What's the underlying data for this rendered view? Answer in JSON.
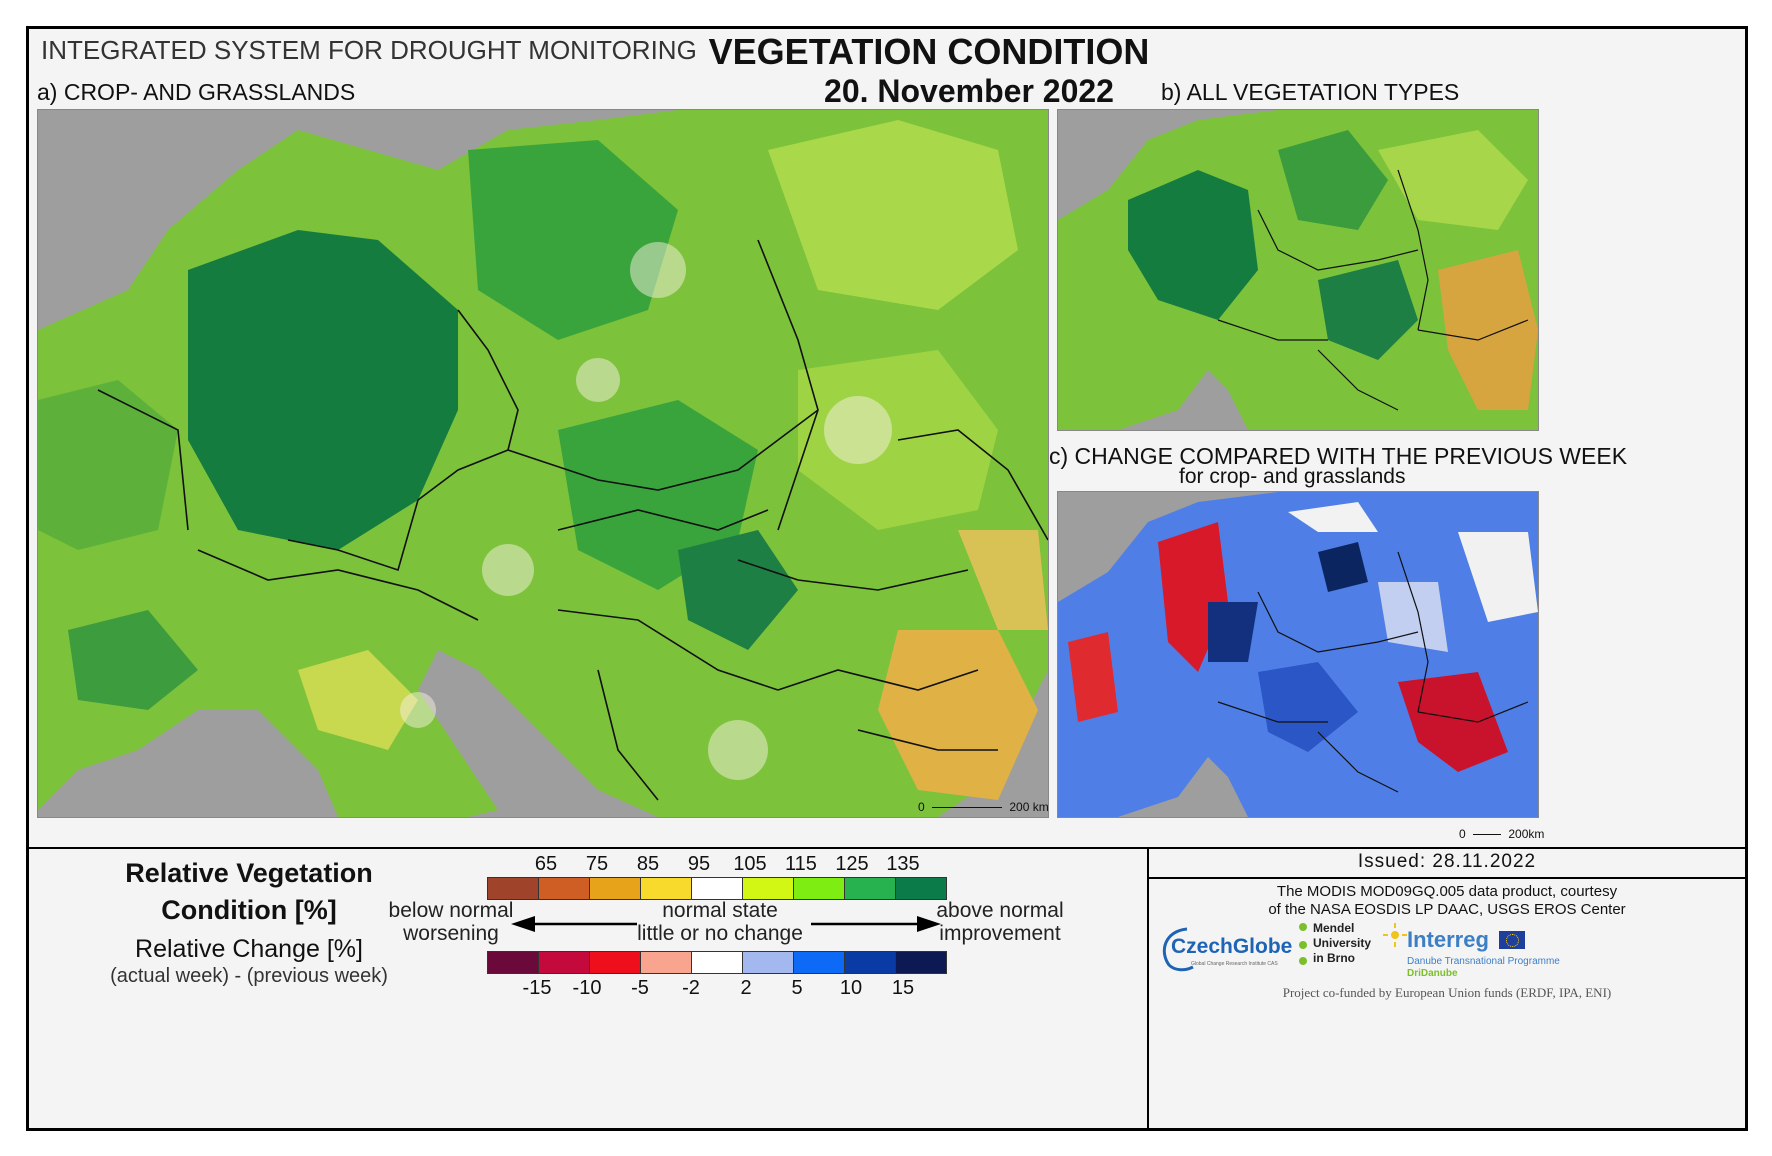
{
  "header": {
    "system_title": "INTEGRATED SYSTEM FOR DROUGHT MONITORING",
    "main_title": "VEGETATION CONDITION",
    "date": "20. November 2022"
  },
  "panels": {
    "a_label": "a) CROP- AND GRASSLANDS",
    "b_label": "b) ALL VEGETATION TYPES",
    "c_label": "c) CHANGE COMPARED WITH THE PREVIOUS WEEK",
    "c_sublabel": "for crop- and grasslands"
  },
  "scalebars": {
    "a": {
      "zero": "0",
      "end": "200 km"
    },
    "c": {
      "zero": "0",
      "end": "200km"
    }
  },
  "legend": {
    "rvc_title": "Relative Vegetation Condition [%]",
    "rc_title": "Relative Change [%]",
    "rc_sub": "(actual week) - (previous week)",
    "rvc_colors": [
      "#a0432b",
      "#cf5e25",
      "#e7a41b",
      "#f8da2c",
      "#ffffff",
      "#d2f714",
      "#7ded12",
      "#27b14f",
      "#0c7b4a"
    ],
    "rvc_ticks": [
      "65",
      "75",
      "85",
      "95",
      "105",
      "115",
      "125",
      "135"
    ],
    "rc_colors": [
      "#6b0a3a",
      "#c40a3d",
      "#ef0f1c",
      "#f9a48f",
      "#ffffff",
      "#a3b8ef",
      "#0c6af6",
      "#0a3ba4",
      "#0c1953"
    ],
    "rc_ticks": [
      "-15",
      "-10",
      "-5",
      "-2",
      "2",
      "5",
      "10",
      "15"
    ],
    "below_normal": "below normal",
    "worsening": "worsening",
    "normal_state": "normal state",
    "little_change": "little or no change",
    "above_normal": "above normal",
    "improvement": "improvement"
  },
  "info": {
    "issued": "Issued: 28.11.2022",
    "credit_line1": "The MODIS MOD09GQ.005 data product, courtesy",
    "credit_line2": "of the NASA EOSDIS LP DAAC, USGS EROS Center",
    "czechglobe": "CzechGlobe",
    "czechglobe_sub": "Global Change Research Institute CAS",
    "mendel": "Mendel University in Brno",
    "interreg": "Interreg",
    "interreg_sub": "Danube Transnational Programme",
    "dridanube": "DriDanube",
    "cofunded": "Project co-funded by European Union funds (ERDF, IPA, ENI)"
  }
}
